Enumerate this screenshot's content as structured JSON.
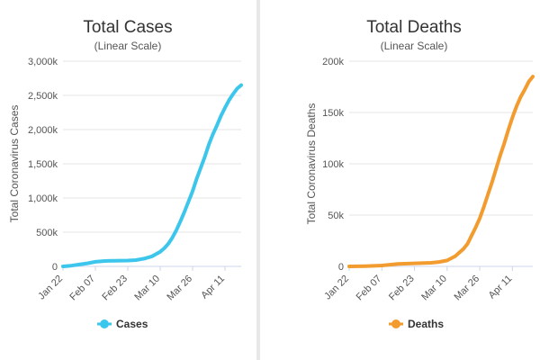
{
  "chart_data": [
    {
      "type": "line",
      "title": "Total Cases",
      "subtitle": "(Linear Scale)",
      "xlabel": "",
      "ylabel": "Total Coronavirus Cases",
      "color": "#3cc6ec",
      "ylim": [
        0,
        3000000
      ],
      "yticks": [
        0,
        500000,
        1000000,
        1500000,
        2000000,
        2500000,
        3000000
      ],
      "ytick_labels": [
        "0",
        "500k",
        "1,000k",
        "1,500k",
        "2,000k",
        "2,500k",
        "3,000k"
      ],
      "xtick_labels": [
        "Jan 22",
        "Feb 07",
        "Feb 23",
        "Mar 10",
        "Mar 26",
        "Apr 11"
      ],
      "xtick_days": [
        0,
        16,
        32,
        48,
        64,
        80
      ],
      "xlim": [
        0,
        88
      ],
      "grid": true,
      "legend_position": "bottom-center",
      "series": [
        {
          "name": "Cases",
          "x": [
            0,
            4,
            8,
            12,
            16,
            20,
            22,
            24,
            28,
            32,
            36,
            40,
            44,
            48,
            50,
            52,
            54,
            56,
            58,
            60,
            62,
            64,
            66,
            68,
            70,
            72,
            74,
            76,
            78,
            80,
            82,
            84,
            86,
            88
          ],
          "values": [
            600,
            9900,
            28000,
            45000,
            67000,
            77000,
            80000,
            81000,
            84000,
            85000,
            92000,
            113000,
            148000,
            215000,
            265000,
            330000,
            420000,
            530000,
            660000,
            800000,
            950000,
            1100000,
            1280000,
            1440000,
            1600000,
            1780000,
            1930000,
            2060000,
            2200000,
            2320000,
            2430000,
            2520000,
            2600000,
            2650000
          ]
        }
      ]
    },
    {
      "type": "line",
      "title": "Total Deaths",
      "subtitle": "(Linear Scale)",
      "xlabel": "",
      "ylabel": "Total Coronavirus Deaths",
      "color": "#f29b2e",
      "ylim": [
        0,
        200000
      ],
      "yticks": [
        0,
        50000,
        100000,
        150000,
        200000
      ],
      "ytick_labels": [
        "0",
        "50k",
        "100k",
        "150k",
        "200k"
      ],
      "xtick_labels": [
        "Jan 22",
        "Feb 07",
        "Feb 23",
        "Mar 10",
        "Mar 26",
        "Apr 11"
      ],
      "xtick_days": [
        0,
        16,
        32,
        48,
        64,
        80
      ],
      "xlim": [
        0,
        90
      ],
      "grid": true,
      "legend_position": "bottom-center",
      "series": [
        {
          "name": "Deaths",
          "x": [
            0,
            8,
            16,
            24,
            32,
            40,
            44,
            48,
            52,
            56,
            58,
            60,
            62,
            64,
            66,
            68,
            70,
            72,
            74,
            76,
            78,
            80,
            82,
            84,
            86,
            88,
            90
          ],
          "values": [
            17,
            300,
            900,
            2400,
            3000,
            3500,
            4300,
            5800,
            10000,
            17000,
            22000,
            30000,
            38000,
            47000,
            58000,
            70000,
            82000,
            95000,
            108000,
            120000,
            133000,
            145000,
            156000,
            165000,
            172000,
            180000,
            185000
          ]
        }
      ]
    }
  ]
}
